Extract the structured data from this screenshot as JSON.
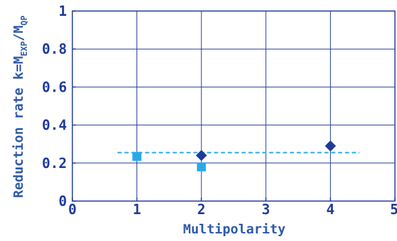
{
  "chart_data": {
    "type": "scatter",
    "xlabel": "Multipolarity",
    "ylabel": {
      "prefix": "Reduction rate  k=M",
      "sub1": "EXP",
      "middle": "/M",
      "sub2": "QP"
    },
    "xlim": [
      0,
      5
    ],
    "ylim": [
      0,
      1
    ],
    "x_ticks": [
      0,
      1,
      2,
      3,
      4,
      5
    ],
    "y_ticks": [
      0,
      0.2,
      0.4,
      0.6,
      0.8,
      1
    ],
    "x_tick_labels": [
      "0",
      "1",
      "2",
      "3",
      "4",
      "5"
    ],
    "y_tick_labels": [
      "0",
      "0.2",
      "0.4",
      "0.6",
      "0.8",
      "1"
    ],
    "grid": true,
    "series": [
      {
        "marker": "diamond",
        "color": "#1f3b99",
        "points": [
          {
            "x": 2,
            "y": 0.24
          },
          {
            "x": 4,
            "y": 0.29
          }
        ]
      },
      {
        "marker": "square",
        "color": "#29a9e8",
        "points": [
          {
            "x": 1,
            "y": 0.235
          },
          {
            "x": 2,
            "y": 0.18
          }
        ]
      }
    ],
    "reference_line": {
      "style": "dashed",
      "color": "#29a9e8",
      "y": 0.255,
      "x_start": 0.7,
      "x_end": 4.45
    },
    "colors": {
      "axis": "#1f3b99",
      "grid": "#1f3b99",
      "tick_text": "#1f3b99",
      "title_text": "#2f5aa8"
    }
  }
}
